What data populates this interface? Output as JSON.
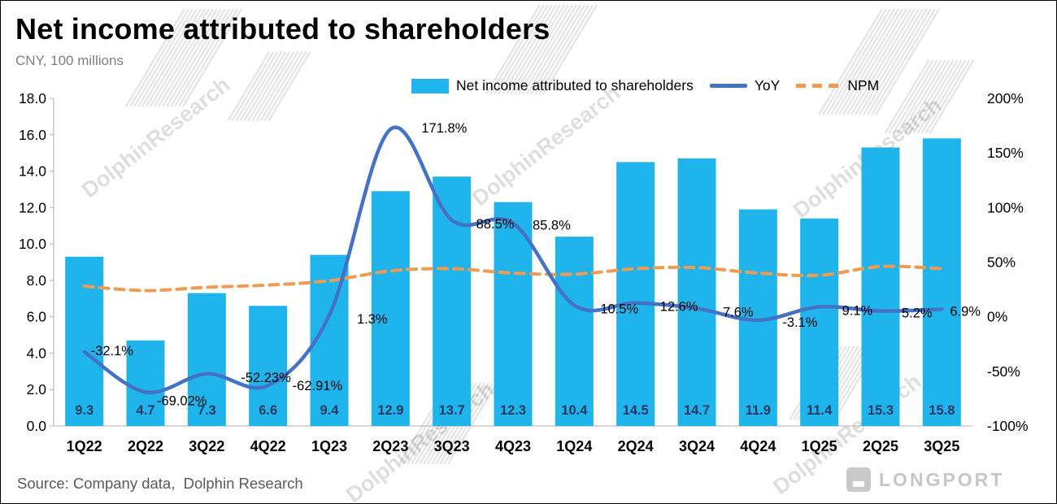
{
  "header": {
    "title": "Net income attributed to shareholders",
    "subtitle": "CNY, 100 millions"
  },
  "legend": [
    {
      "label": "Net income attributed to shareholders",
      "type": "bar",
      "color": "#1FB4EC"
    },
    {
      "label": "YoY",
      "type": "line",
      "color": "#4472C4"
    },
    {
      "label": "NPM",
      "type": "dashed-line",
      "color": "#F09B51"
    }
  ],
  "chart_data": {
    "type": "bar",
    "title": "Net income attributed to shareholders",
    "unit": "CNY, 100 millions",
    "categories": [
      "1Q22",
      "2Q22",
      "3Q22",
      "4Q22",
      "1Q23",
      "2Q23",
      "3Q23",
      "4Q23",
      "1Q24",
      "2Q24",
      "3Q24",
      "4Q24",
      "1Q25",
      "2Q25",
      "3Q25"
    ],
    "series": [
      {
        "name": "Net income attributed to shareholders",
        "type": "bar",
        "axis": "left",
        "color": "#1FB4EC",
        "values": [
          9.3,
          4.7,
          7.3,
          6.6,
          9.4,
          12.9,
          13.7,
          12.3,
          10.4,
          14.5,
          14.7,
          11.9,
          11.4,
          15.3,
          15.8
        ]
      },
      {
        "name": "YoY",
        "type": "line",
        "axis": "right",
        "color": "#4472C4",
        "values": [
          -32.1,
          -69.02,
          -52.23,
          -62.91,
          1.3,
          171.8,
          88.5,
          85.8,
          10.5,
          12.6,
          7.6,
          -3.1,
          9.1,
          5.2,
          6.9
        ],
        "labels": [
          "-32.1%",
          "-69.02%",
          "-52.23%",
          "-62.91%",
          "1.3%",
          "171.8%",
          "88.5%",
          "85.8%",
          "10.5%",
          "12.6%",
          "7.6%",
          "-3.1%",
          "9.1%",
          "5.2%",
          "6.9%"
        ]
      },
      {
        "name": "NPM",
        "type": "dashed-line",
        "axis": "right",
        "color": "#F09B51",
        "values": [
          28,
          24,
          27,
          29,
          33,
          42,
          44,
          40,
          39,
          44,
          45,
          40,
          38,
          46,
          44
        ]
      }
    ],
    "left_axis": {
      "min": 0,
      "max": 18,
      "step": 2,
      "tick_labels": [
        "0.0",
        "2.0",
        "4.0",
        "6.0",
        "8.0",
        "10.0",
        "12.0",
        "14.0",
        "16.0",
        "18.0"
      ]
    },
    "right_axis": {
      "min": -100,
      "max": 200,
      "step": 50,
      "tick_labels": [
        "-100%",
        "-50%",
        "0%",
        "50%",
        "100%",
        "150%",
        "200%"
      ]
    },
    "grid": false,
    "legend_position": "top"
  },
  "watermark": {
    "text": "DolphinResearch"
  },
  "footer": {
    "source": "Source: Company data,  Dolphin Research",
    "logo_text": "LONGPORT"
  }
}
